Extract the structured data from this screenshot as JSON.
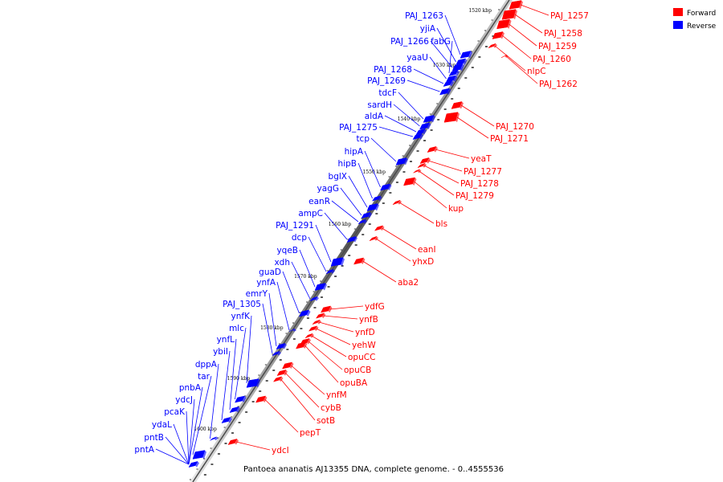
{
  "caption": "Pantoea ananatis AJ13355 DNA, complete genome. - 0..4555536",
  "legend": [
    {
      "label": "Forward",
      "color": "#ff0000"
    },
    {
      "label": "Reverse",
      "color": "#0000ff"
    }
  ],
  "ticks": [
    "1520 kbp",
    "1530 kbp",
    "1540 kbp",
    "1550 kbp",
    "1560 kbp",
    "1570 kbp",
    "1580 kbp",
    "1590 kbp",
    "1600 kbp"
  ],
  "forward_genes": [
    "PAJ_1257",
    "PAJ_1258",
    "PAJ_1259",
    "PAJ_1260",
    "nlpC",
    "PAJ_1262",
    "PAJ_1270",
    "PAJ_1271",
    "yeaT",
    "PAJ_1277",
    "PAJ_1278",
    "PAJ_1279",
    "kup",
    "bls",
    "eanI",
    "yhxD",
    "aba2",
    "ydfG",
    "ynfB",
    "ynfD",
    "yehW",
    "opuCC",
    "opuCB",
    "opuBA",
    "ynfM",
    "cybB",
    "sotB",
    "pepT",
    "ydcI"
  ],
  "reverse_genes": [
    "PAJ_1263",
    "yjiA",
    "PAJ_1266",
    "fabG",
    "yaaU",
    "PAJ_1268",
    "PAJ_1269",
    "tdcF",
    "sardH",
    "aldA",
    "PAJ_1275",
    "tcp",
    "hipA",
    "hipB",
    "bglX",
    "yagG",
    "eanR",
    "ampC",
    "PAJ_1291",
    "dcp",
    "yqeB",
    "xdh",
    "guaD",
    "ynfA",
    "emrY",
    "PAJ_1305",
    "ynfK",
    "mlc",
    "ynfL",
    "ybiI",
    "dppA",
    "tar",
    "pnbA",
    "ydcJ",
    "pcaK",
    "ydaL",
    "pntB",
    "pntA"
  ]
}
